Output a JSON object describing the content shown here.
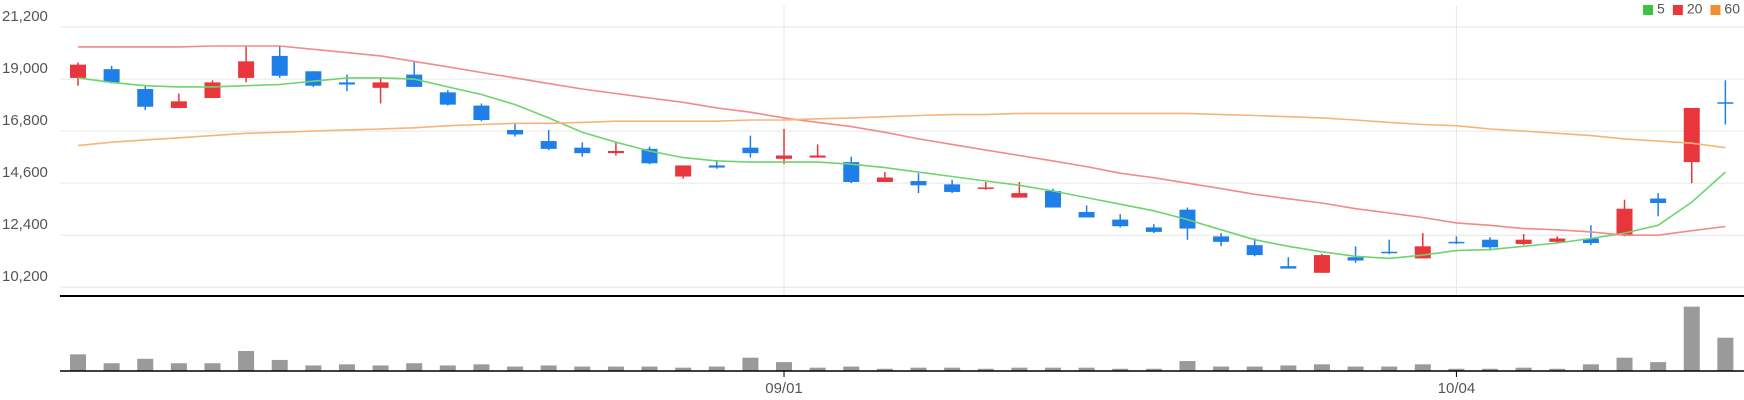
{
  "chart_data": [
    {
      "type": "candlestick",
      "open": [
        19050,
        19420,
        18580,
        17780,
        18200,
        19050,
        19980,
        19330,
        18860,
        18630,
        19190,
        18440,
        17880,
        16850,
        16380,
        16100,
        15870,
        16050,
        14880,
        15350,
        16100,
        15630,
        15680,
        15490,
        14650,
        14690,
        14550,
        14370,
        13990,
        14270,
        13380,
        13060,
        12730,
        13480,
        12350,
        11980,
        11090,
        10810,
        11470,
        11700,
        11420,
        12120,
        12210,
        12030,
        12120,
        12260,
        12400,
        13950,
        15490,
        18020
      ],
      "high": [
        19700,
        19560,
        18720,
        18390,
        18950,
        20400,
        20400,
        19330,
        19190,
        19050,
        19750,
        18530,
        17970,
        17130,
        16850,
        16330,
        16330,
        16150,
        15350,
        15580,
        16610,
        16890,
        16240,
        15720,
        15070,
        15020,
        14740,
        14650,
        14650,
        14370,
        13660,
        13290,
        12870,
        13570,
        12490,
        12260,
        11470,
        11610,
        11930,
        12210,
        12490,
        12350,
        12310,
        12450,
        12350,
        12820,
        13900,
        14180,
        17780,
        18950
      ],
      "low": [
        18720,
        18810,
        17690,
        17780,
        18200,
        18860,
        19050,
        18670,
        18490,
        17970,
        18670,
        17880,
        17220,
        16570,
        16000,
        15720,
        15770,
        15400,
        14790,
        15210,
        15680,
        15400,
        15680,
        14600,
        14650,
        14180,
        14180,
        14320,
        13990,
        13570,
        13150,
        12730,
        12490,
        12210,
        11930,
        11510,
        10990,
        10810,
        11230,
        11610,
        11420,
        12030,
        11750,
        11980,
        12070,
        11980,
        12350,
        13200,
        14600,
        17080
      ],
      "close": [
        19610,
        18860,
        17830,
        18060,
        18860,
        19750,
        19140,
        18720,
        18770,
        18860,
        18670,
        17920,
        17270,
        16660,
        16050,
        15870,
        15960,
        15440,
        15350,
        15260,
        15870,
        15770,
        15770,
        14650,
        14840,
        14510,
        14230,
        14420,
        14180,
        13570,
        13150,
        12780,
        12540,
        12680,
        12120,
        11560,
        10990,
        11560,
        11330,
        11650,
        11930,
        12070,
        11890,
        12210,
        12260,
        12070,
        13520,
        13760,
        17780,
        17970
      ],
      "up_color": "#e8363c",
      "down_color": "#1f7fe8",
      "series": [
        {
          "name": "5",
          "color": "#3cc43c",
          "line_color": "#6fd46f",
          "values": [
            19050,
            18860,
            18720,
            18670,
            18670,
            18720,
            18770,
            18910,
            19050,
            19050,
            19000,
            18670,
            18350,
            17920,
            17360,
            16750,
            16330,
            15960,
            15680,
            15540,
            15490,
            15490,
            15490,
            15400,
            15260,
            15070,
            14880,
            14690,
            14510,
            14270,
            13990,
            13710,
            13430,
            13060,
            12630,
            12210,
            11930,
            11700,
            11510,
            11420,
            11560,
            11750,
            11790,
            11930,
            12070,
            12260,
            12490,
            12820,
            13800,
            15070
          ]
        },
        {
          "name": "20",
          "color": "#e8363c",
          "line_color": "#f28a8a",
          "values": [
            20360,
            20360,
            20360,
            20360,
            20400,
            20400,
            20400,
            20260,
            20120,
            19980,
            19750,
            19520,
            19280,
            19050,
            18810,
            18580,
            18390,
            18200,
            18020,
            17780,
            17600,
            17360,
            17170,
            16990,
            16750,
            16470,
            16240,
            16000,
            15770,
            15540,
            15300,
            15020,
            14830,
            14600,
            14370,
            14130,
            13940,
            13760,
            13520,
            13340,
            13150,
            12920,
            12820,
            12680,
            12630,
            12540,
            12400,
            12400,
            12590,
            12770
          ]
        },
        {
          "name": "60",
          "color": "#f0902c",
          "line_color": "#f5b578",
          "values": [
            16190,
            16330,
            16430,
            16520,
            16610,
            16710,
            16750,
            16800,
            16850,
            16890,
            16940,
            17030,
            17080,
            17130,
            17130,
            17170,
            17220,
            17220,
            17220,
            17220,
            17270,
            17270,
            17320,
            17360,
            17410,
            17460,
            17500,
            17500,
            17550,
            17550,
            17550,
            17550,
            17550,
            17550,
            17500,
            17460,
            17410,
            17360,
            17270,
            17170,
            17080,
            17030,
            16890,
            16800,
            16710,
            16610,
            16470,
            16380,
            16290,
            16100
          ]
        }
      ],
      "ylim": [
        9830,
        22090
      ],
      "yticks": [
        {
          "value": 10200,
          "label": "10,200"
        },
        {
          "value": 12400,
          "label": "12,400"
        },
        {
          "value": 14600,
          "label": "14,600"
        },
        {
          "value": 16800,
          "label": "16,800"
        },
        {
          "value": 19000,
          "label": "19,000"
        },
        {
          "value": 21200,
          "label": "21,200"
        }
      ],
      "grid": true,
      "legend": "top-right"
    },
    {
      "type": "bar",
      "categories": [
        null,
        null,
        null,
        null,
        null,
        null,
        null,
        null,
        null,
        null,
        null,
        null,
        null,
        null,
        null,
        null,
        null,
        null,
        null,
        null,
        null,
        "09/01",
        null,
        null,
        null,
        null,
        null,
        null,
        null,
        null,
        null,
        null,
        null,
        null,
        null,
        null,
        null,
        null,
        null,
        null,
        null,
        "10/04",
        null,
        null,
        null,
        null,
        null,
        null,
        null,
        null
      ],
      "values": [
        15,
        7,
        11,
        7,
        7,
        18,
        10,
        5,
        6,
        5,
        7,
        5,
        6,
        4,
        5,
        4,
        4,
        4,
        3,
        4,
        12,
        8,
        3,
        4,
        2,
        3,
        3,
        2,
        3,
        3,
        3,
        2,
        2,
        9,
        4,
        4,
        5,
        6,
        4,
        4,
        6,
        2,
        2,
        3,
        2,
        6,
        12,
        8,
        58,
        30
      ],
      "color": "#9a9a9a",
      "ylim": [
        0,
        64
      ]
    }
  ]
}
